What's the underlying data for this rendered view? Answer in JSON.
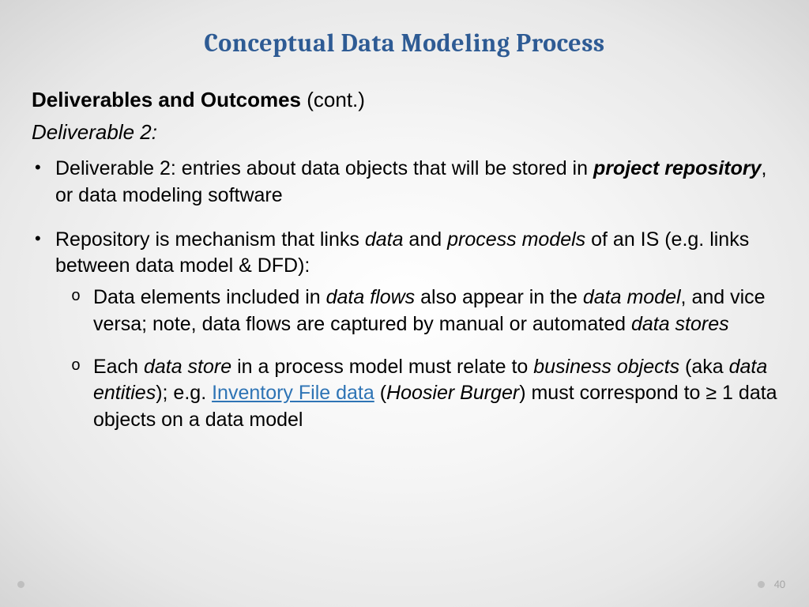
{
  "colors": {
    "title": "#2e5b94",
    "body": "#000000",
    "link": "#2e74b5",
    "pageNum": "#a6a6a6",
    "decoDot": "#bfbfbf"
  },
  "typography": {
    "titleFont": "Cambria, Georgia, serif",
    "titleSize": 32,
    "bodyFont": "Century Gothic, sans-serif",
    "bodySize": 25,
    "headingSize": 26
  },
  "title": "Conceptual Data Modeling Process",
  "heading": {
    "bold": "Deliverables and Outcomes",
    "cont": " (cont.)"
  },
  "subheading": "Deliverable 2:",
  "bullets": [
    {
      "runs": [
        {
          "t": "Deliverable 2: entries about data objects that will be stored in "
        },
        {
          "t": "project repository",
          "style": "bi"
        },
        {
          "t": ", or data modeling software"
        }
      ]
    },
    {
      "runs": [
        {
          "t": "Repository is mechanism that links "
        },
        {
          "t": "data",
          "style": "it"
        },
        {
          "t": " and "
        },
        {
          "t": "process models",
          "style": "it"
        },
        {
          "t": " of an IS (e.g. links between data model & DFD):"
        }
      ],
      "children": [
        {
          "runs": [
            {
              "t": "Data elements included in "
            },
            {
              "t": "data flows",
              "style": "it"
            },
            {
              "t": " also appear in the "
            },
            {
              "t": "data model",
              "style": "it"
            },
            {
              "t": ", and vice versa; note, data flows are captured by manual or automated "
            },
            {
              "t": "data stores",
              "style": "it"
            }
          ]
        },
        {
          "runs": [
            {
              "t": "Each "
            },
            {
              "t": "data store",
              "style": "it"
            },
            {
              "t": " in a process model must relate to "
            },
            {
              "t": "business objects",
              "style": "it"
            },
            {
              "t": " (aka "
            },
            {
              "t": "data entities",
              "style": "it"
            },
            {
              "t": "); e.g. "
            },
            {
              "t": "Inventory File data",
              "style": "link"
            },
            {
              "t": " ("
            },
            {
              "t": "Hoosier Burger",
              "style": "it"
            },
            {
              "t": ") must correspond to ≥ 1 data objects on a data model"
            }
          ]
        }
      ]
    }
  ],
  "pageNumber": "40"
}
